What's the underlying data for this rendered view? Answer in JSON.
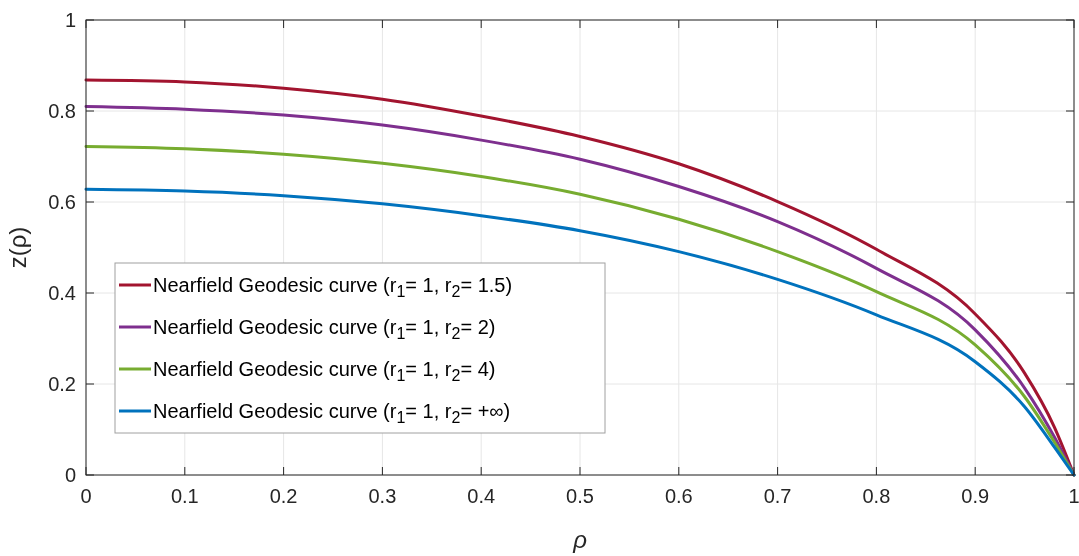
{
  "chart_data": {
    "type": "line",
    "xlabel": "ρ",
    "ylabel": "z(ρ)",
    "x": [
      0,
      0.1,
      0.2,
      0.3,
      0.4,
      0.5,
      0.6,
      0.7,
      0.8,
      0.9,
      0.95,
      0.98,
      1
    ],
    "xlim": [
      0,
      1
    ],
    "ylim": [
      0,
      1
    ],
    "xticks": [
      0,
      0.1,
      0.2,
      0.3,
      0.4,
      0.5,
      0.6,
      0.7,
      0.8,
      0.9,
      1
    ],
    "yticks": [
      0,
      0.2,
      0.4,
      0.6,
      0.8,
      1
    ],
    "grid": true,
    "legend": "bottom left",
    "line_style": "solid",
    "marker": "none",
    "series": [
      {
        "name": "Nearfield Geodesic curve (r$_{1}$= 1, r$_{2}$= 1.5)",
        "color": "#a2142f",
        "values": [
          0.868,
          0.864,
          0.85,
          0.826,
          0.789,
          0.744,
          0.684,
          0.601,
          0.496,
          0.354,
          0.224,
          0.106,
          0
        ]
      },
      {
        "name": "Nearfield Geodesic curve (r$_{1}$= 1, r$_{2}$= 2)",
        "color": "#7e2f8e",
        "values": [
          0.81,
          0.804,
          0.791,
          0.769,
          0.736,
          0.694,
          0.634,
          0.557,
          0.454,
          0.319,
          0.191,
          0.084,
          0
        ]
      },
      {
        "name": "Nearfield Geodesic curve (r$_{1}$= 1, r$_{2}$= 4)",
        "color": "#77ac30",
        "values": [
          0.722,
          0.717,
          0.705,
          0.685,
          0.656,
          0.617,
          0.562,
          0.491,
          0.403,
          0.286,
          0.172,
          0.073,
          0
        ]
      },
      {
        "name": "Nearfield Geodesic curve (r$_{1}$= 1, r$_{2}$= +∞)",
        "color": "#0072bd",
        "values": [
          0.628,
          0.624,
          0.614,
          0.596,
          0.57,
          0.537,
          0.491,
          0.43,
          0.352,
          0.249,
          0.15,
          0.062,
          0
        ]
      }
    ]
  }
}
